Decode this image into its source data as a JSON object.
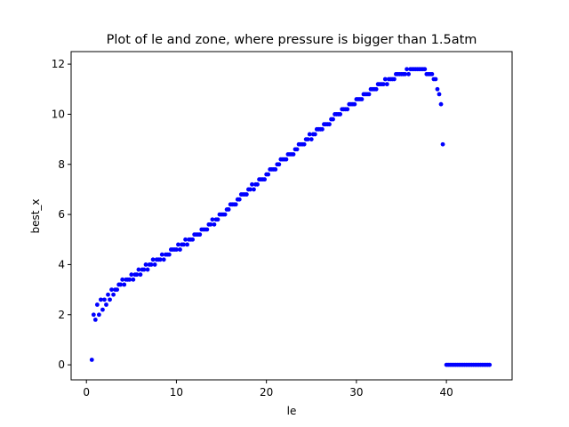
{
  "chart_data": {
    "type": "scatter",
    "title": "Plot of le and zone, where pressure is bigger than 1.5atm",
    "xlabel": "le",
    "ylabel": "best_x",
    "xlim": [
      -1.7,
      47.3
    ],
    "ylim": [
      -0.6,
      12.5
    ],
    "xticks": [
      0,
      10,
      20,
      30,
      40
    ],
    "yticks": [
      0,
      2,
      4,
      6,
      8,
      10,
      12
    ],
    "xtick_labels": [
      "0",
      "10",
      "20",
      "30",
      "40"
    ],
    "ytick_labels": [
      "0",
      "2",
      "4",
      "6",
      "8",
      "10",
      "12"
    ],
    "grid": false,
    "legend": "none",
    "marker_color": "#0000ff",
    "series": [
      {
        "points": [
          [
            0.6,
            0.2
          ],
          [
            0.8,
            2.0
          ],
          [
            1.0,
            1.8
          ],
          [
            1.2,
            2.4
          ],
          [
            1.4,
            2.0
          ],
          [
            1.6,
            2.6
          ],
          [
            1.8,
            2.2
          ],
          [
            2.0,
            2.6
          ],
          [
            2.2,
            2.4
          ],
          [
            2.4,
            2.8
          ],
          [
            2.6,
            2.6
          ],
          [
            2.8,
            3.0
          ],
          [
            3.0,
            2.8
          ],
          [
            3.2,
            3.0
          ],
          [
            3.4,
            3.0
          ],
          [
            3.6,
            3.2
          ],
          [
            3.8,
            3.2
          ],
          [
            4.0,
            3.4
          ],
          [
            4.2,
            3.2
          ],
          [
            4.4,
            3.4
          ],
          [
            4.6,
            3.4
          ],
          [
            4.8,
            3.4
          ],
          [
            5.0,
            3.6
          ],
          [
            5.2,
            3.4
          ],
          [
            5.4,
            3.6
          ],
          [
            5.6,
            3.6
          ],
          [
            5.8,
            3.8
          ],
          [
            6.0,
            3.6
          ],
          [
            6.2,
            3.8
          ],
          [
            6.4,
            3.8
          ],
          [
            6.6,
            4.0
          ],
          [
            6.8,
            3.8
          ],
          [
            7.0,
            4.0
          ],
          [
            7.2,
            4.0
          ],
          [
            7.4,
            4.2
          ],
          [
            7.6,
            4.0
          ],
          [
            7.8,
            4.2
          ],
          [
            8.0,
            4.2
          ],
          [
            8.2,
            4.2
          ],
          [
            8.4,
            4.4
          ],
          [
            8.6,
            4.2
          ],
          [
            8.8,
            4.4
          ],
          [
            9.0,
            4.4
          ],
          [
            9.2,
            4.4
          ],
          [
            9.4,
            4.6
          ],
          [
            9.6,
            4.6
          ],
          [
            9.8,
            4.6
          ],
          [
            10.0,
            4.6
          ],
          [
            10.2,
            4.8
          ],
          [
            10.4,
            4.6
          ],
          [
            10.6,
            4.8
          ],
          [
            10.8,
            4.8
          ],
          [
            11.0,
            5.0
          ],
          [
            11.2,
            4.8
          ],
          [
            11.4,
            5.0
          ],
          [
            11.6,
            5.0
          ],
          [
            11.8,
            5.0
          ],
          [
            12.0,
            5.2
          ],
          [
            12.2,
            5.2
          ],
          [
            12.4,
            5.2
          ],
          [
            12.6,
            5.2
          ],
          [
            12.8,
            5.4
          ],
          [
            13.0,
            5.4
          ],
          [
            13.2,
            5.4
          ],
          [
            13.4,
            5.4
          ],
          [
            13.6,
            5.6
          ],
          [
            13.8,
            5.6
          ],
          [
            14.0,
            5.8
          ],
          [
            14.2,
            5.6
          ],
          [
            14.4,
            5.8
          ],
          [
            14.6,
            5.8
          ],
          [
            14.8,
            6.0
          ],
          [
            15.0,
            6.0
          ],
          [
            15.2,
            6.0
          ],
          [
            15.4,
            6.0
          ],
          [
            15.6,
            6.2
          ],
          [
            15.8,
            6.2
          ],
          [
            16.0,
            6.4
          ],
          [
            16.2,
            6.4
          ],
          [
            16.4,
            6.4
          ],
          [
            16.6,
            6.4
          ],
          [
            16.8,
            6.6
          ],
          [
            17.0,
            6.6
          ],
          [
            17.2,
            6.8
          ],
          [
            17.4,
            6.8
          ],
          [
            17.6,
            6.8
          ],
          [
            17.8,
            6.8
          ],
          [
            18.0,
            7.0
          ],
          [
            18.2,
            7.0
          ],
          [
            18.4,
            7.2
          ],
          [
            18.6,
            7.0
          ],
          [
            18.8,
            7.2
          ],
          [
            19.0,
            7.2
          ],
          [
            19.2,
            7.4
          ],
          [
            19.4,
            7.4
          ],
          [
            19.6,
            7.4
          ],
          [
            19.8,
            7.4
          ],
          [
            20.0,
            7.6
          ],
          [
            20.2,
            7.6
          ],
          [
            20.4,
            7.8
          ],
          [
            20.6,
            7.8
          ],
          [
            20.8,
            7.8
          ],
          [
            21.0,
            7.8
          ],
          [
            21.2,
            8.0
          ],
          [
            21.4,
            8.0
          ],
          [
            21.6,
            8.2
          ],
          [
            21.8,
            8.2
          ],
          [
            22.0,
            8.2
          ],
          [
            22.2,
            8.2
          ],
          [
            22.4,
            8.4
          ],
          [
            22.6,
            8.4
          ],
          [
            22.8,
            8.4
          ],
          [
            23.0,
            8.4
          ],
          [
            23.2,
            8.6
          ],
          [
            23.4,
            8.6
          ],
          [
            23.6,
            8.8
          ],
          [
            23.8,
            8.8
          ],
          [
            24.0,
            8.8
          ],
          [
            24.2,
            8.8
          ],
          [
            24.4,
            9.0
          ],
          [
            24.6,
            9.0
          ],
          [
            24.8,
            9.2
          ],
          [
            25.0,
            9.0
          ],
          [
            25.2,
            9.2
          ],
          [
            25.4,
            9.2
          ],
          [
            25.6,
            9.4
          ],
          [
            25.8,
            9.4
          ],
          [
            26.0,
            9.4
          ],
          [
            26.2,
            9.4
          ],
          [
            26.4,
            9.6
          ],
          [
            26.6,
            9.6
          ],
          [
            26.8,
            9.6
          ],
          [
            27.0,
            9.6
          ],
          [
            27.2,
            9.8
          ],
          [
            27.4,
            9.8
          ],
          [
            27.6,
            10.0
          ],
          [
            27.8,
            10.0
          ],
          [
            28.0,
            10.0
          ],
          [
            28.2,
            10.0
          ],
          [
            28.4,
            10.2
          ],
          [
            28.6,
            10.2
          ],
          [
            28.8,
            10.2
          ],
          [
            29.0,
            10.2
          ],
          [
            29.2,
            10.4
          ],
          [
            29.4,
            10.4
          ],
          [
            29.6,
            10.4
          ],
          [
            29.8,
            10.4
          ],
          [
            30.0,
            10.6
          ],
          [
            30.2,
            10.6
          ],
          [
            30.4,
            10.6
          ],
          [
            30.6,
            10.6
          ],
          [
            30.8,
            10.8
          ],
          [
            31.0,
            10.8
          ],
          [
            31.2,
            10.8
          ],
          [
            31.4,
            10.8
          ],
          [
            31.6,
            11.0
          ],
          [
            31.8,
            11.0
          ],
          [
            32.0,
            11.0
          ],
          [
            32.2,
            11.0
          ],
          [
            32.4,
            11.2
          ],
          [
            32.6,
            11.2
          ],
          [
            32.8,
            11.2
          ],
          [
            33.0,
            11.2
          ],
          [
            33.2,
            11.4
          ],
          [
            33.4,
            11.2
          ],
          [
            33.6,
            11.4
          ],
          [
            33.8,
            11.4
          ],
          [
            34.0,
            11.4
          ],
          [
            34.2,
            11.4
          ],
          [
            34.4,
            11.6
          ],
          [
            34.6,
            11.6
          ],
          [
            34.8,
            11.6
          ],
          [
            35.0,
            11.6
          ],
          [
            35.2,
            11.6
          ],
          [
            35.4,
            11.6
          ],
          [
            35.6,
            11.8
          ],
          [
            35.8,
            11.6
          ],
          [
            36.0,
            11.8
          ],
          [
            36.2,
            11.8
          ],
          [
            36.4,
            11.8
          ],
          [
            36.6,
            11.8
          ],
          [
            36.8,
            11.8
          ],
          [
            37.0,
            11.8
          ],
          [
            37.2,
            11.8
          ],
          [
            37.4,
            11.8
          ],
          [
            37.6,
            11.8
          ],
          [
            37.8,
            11.6
          ],
          [
            38.0,
            11.6
          ],
          [
            38.2,
            11.6
          ],
          [
            38.4,
            11.6
          ],
          [
            38.6,
            11.4
          ],
          [
            38.8,
            11.4
          ],
          [
            39.0,
            11.0
          ],
          [
            39.2,
            10.8
          ],
          [
            39.4,
            10.4
          ],
          [
            39.6,
            8.8
          ],
          [
            40.0,
            0.0
          ],
          [
            40.2,
            0.0
          ],
          [
            40.4,
            0.0
          ],
          [
            40.6,
            0.0
          ],
          [
            40.8,
            0.0
          ],
          [
            41.0,
            0.0
          ],
          [
            41.2,
            0.0
          ],
          [
            41.4,
            0.0
          ],
          [
            41.6,
            0.0
          ],
          [
            41.8,
            0.0
          ],
          [
            42.0,
            0.0
          ],
          [
            42.2,
            0.0
          ],
          [
            42.4,
            0.0
          ],
          [
            42.6,
            0.0
          ],
          [
            42.8,
            0.0
          ],
          [
            43.0,
            0.0
          ],
          [
            43.2,
            0.0
          ],
          [
            43.4,
            0.0
          ],
          [
            43.6,
            0.0
          ],
          [
            43.8,
            0.0
          ],
          [
            44.0,
            0.0
          ],
          [
            44.2,
            0.0
          ],
          [
            44.4,
            0.0
          ],
          [
            44.6,
            0.0
          ],
          [
            44.8,
            0.0
          ]
        ]
      }
    ]
  }
}
